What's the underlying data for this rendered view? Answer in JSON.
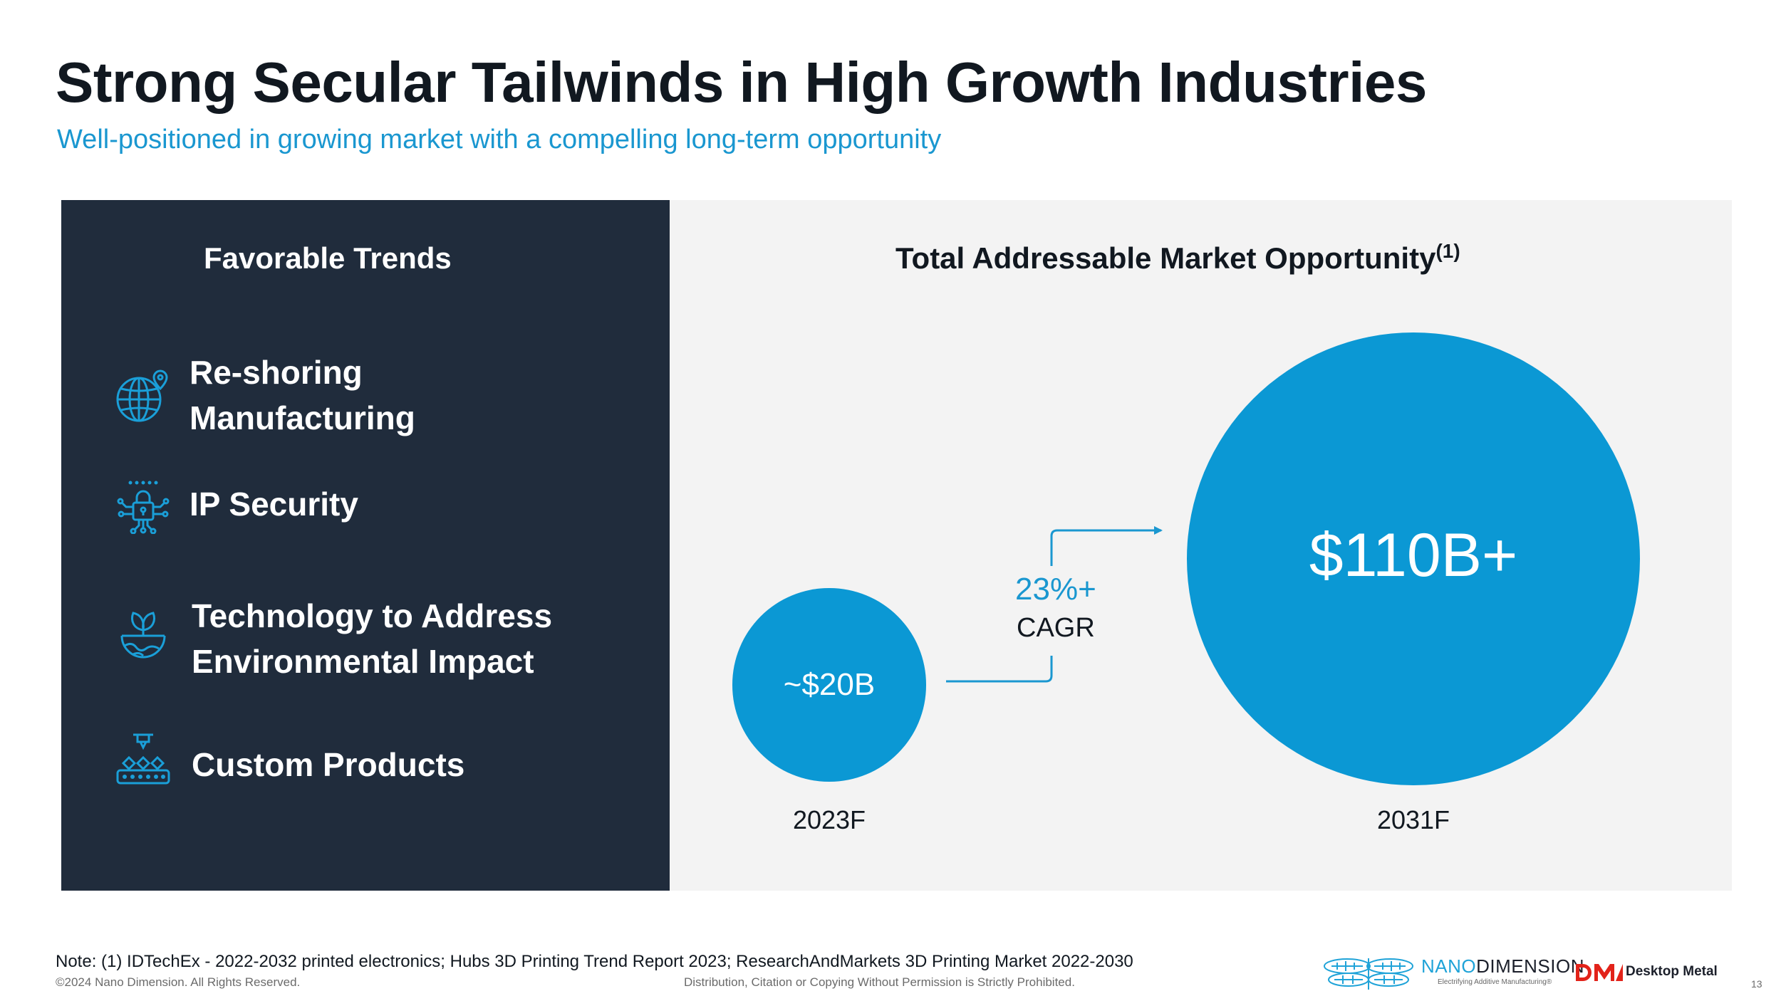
{
  "header": {
    "title": "Strong Secular Tailwinds in High Growth Industries",
    "subtitle": "Well-positioned in growing market with a compelling long-term opportunity"
  },
  "left_panel": {
    "heading": "Favorable Trends",
    "trends": [
      {
        "line1": "Re-shoring",
        "line2": "Manufacturing",
        "icon": "globe-pin-icon"
      },
      {
        "line1": "IP Security",
        "line2": "",
        "icon": "circuit-lock-icon"
      },
      {
        "line1": "Technology to Address",
        "line2": "Environmental Impact",
        "icon": "globe-leaf-icon"
      },
      {
        "line1": "Custom Products",
        "line2": "",
        "icon": "conveyor-printer-icon"
      }
    ]
  },
  "right_panel": {
    "heading": "Total Addressable Market Opportunity",
    "footnote_marker": "(1)",
    "cagr_value": "23%+",
    "cagr_label": "CAGR"
  },
  "chart_data": {
    "type": "bubble",
    "categories": [
      "2023F",
      "2031F"
    ],
    "values": [
      20,
      110
    ],
    "value_labels": [
      "~$20B",
      "$110B+"
    ],
    "unit": "USD billions",
    "growth": "23%+ CAGR",
    "color": "#0b98d4"
  },
  "footer": {
    "note": "Note: (1) IDTechEx - 2022-2032 printed electronics; Hubs 3D Printing Trend Report 2023; ResearchAndMarkets 3D Printing Market 2022-2030",
    "copyright": "©2024 Nano Dimension. All Rights Reserved.",
    "distribution": "Distribution, Citation or Copying Without Permission is Strictly Prohibited.",
    "page_number": "13",
    "nano_logo_light": "NANO",
    "nano_logo_dark": "DIMENSION",
    "nano_tagline": "Electrifying Additive Manufacturing®",
    "dm_logo_text": "Desktop Metal"
  },
  "colors": {
    "accent_blue": "#0b98d4",
    "dark_panel": "#202c3c",
    "light_panel": "#f3f3f3",
    "title": "#111820"
  }
}
